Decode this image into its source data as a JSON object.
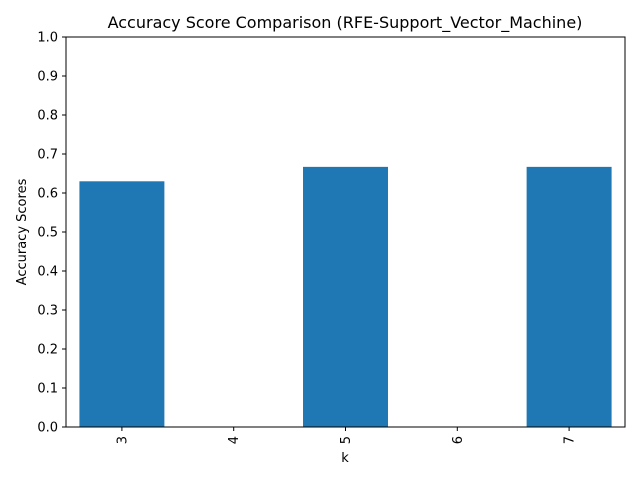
{
  "colors": {
    "bar": "#1f77b4",
    "axis": "#000000",
    "background": "#ffffff"
  },
  "chart_data": {
    "type": "bar",
    "title": "Accuracy Score Comparison (RFE-Support_Vector_Machine)",
    "xlabel": "k",
    "ylabel": "Accuracy Scores",
    "categories": [
      "3",
      "4",
      "5",
      "6",
      "7"
    ],
    "values": [
      0.63,
      0,
      0.667,
      0,
      0.667
    ],
    "ylim": [
      0,
      1
    ],
    "yticks": [
      0.0,
      0.1,
      0.2,
      0.3,
      0.4,
      0.5,
      0.6,
      0.7,
      0.8,
      0.9,
      1.0
    ],
    "ytick_labels": [
      "0.0",
      "0.1",
      "0.2",
      "0.3",
      "0.4",
      "0.5",
      "0.6",
      "0.7",
      "0.8",
      "0.9",
      "1.0"
    ],
    "grid": false,
    "legend": "none"
  }
}
